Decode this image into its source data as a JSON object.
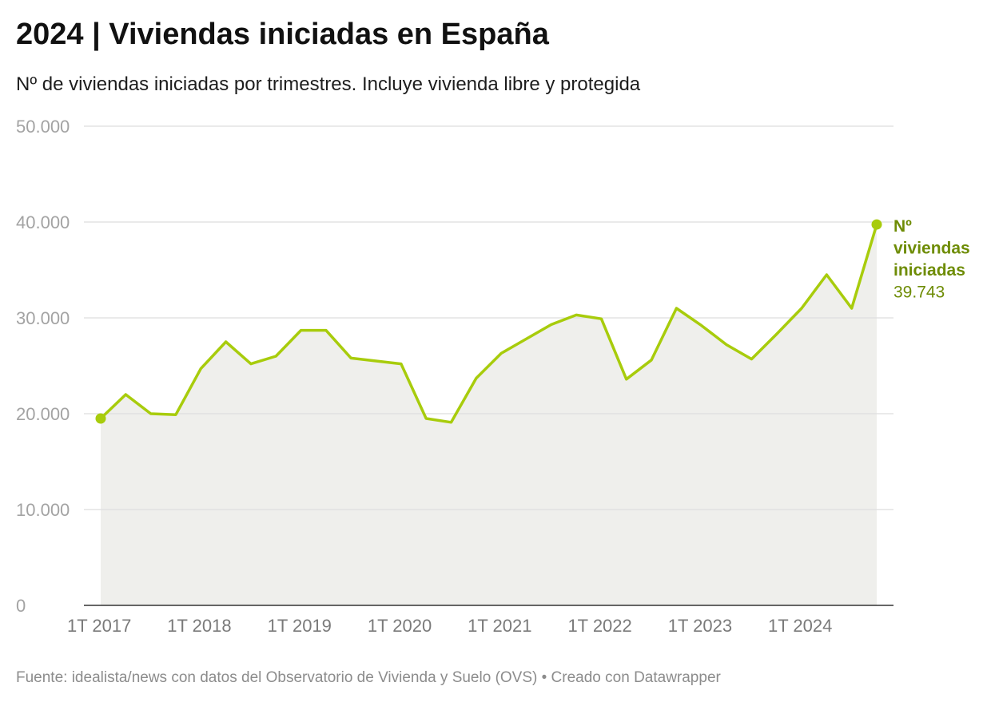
{
  "header": {
    "title": "2024 | Viviendas iniciadas en España",
    "subtitle": "Nº de viviendas iniciadas por trimestres. Incluye vivienda libre y protegida"
  },
  "footer": {
    "source": "Fuente: idealista/news con datos del Observatorio de Vivienda y Suelo (OVS) • Creado con Datawrapper"
  },
  "chart_data": {
    "type": "area",
    "series": [
      {
        "name": "Nº viviendas iniciadas",
        "color": "#a8cc0c",
        "fill": "#efefec",
        "label_lines": [
          "Nº",
          "viviendas",
          "iniciadas"
        ],
        "last_value_label": "39.743",
        "values": [
          19500,
          22000,
          20000,
          19900,
          24700,
          27500,
          25200,
          26000,
          28700,
          28700,
          25800,
          25500,
          25200,
          19500,
          19100,
          23700,
          26300,
          27800,
          29300,
          30300,
          29900,
          23600,
          25600,
          31000,
          29200,
          27200,
          25700,
          28300,
          31000,
          34500,
          31000,
          39743
        ]
      }
    ],
    "x_tick_labels": [
      "1T 2017",
      "1T 2018",
      "1T 2019",
      "1T 2020",
      "1T 2021",
      "1T 2022",
      "1T 2023",
      "1T 2024"
    ],
    "y_ticks": [
      0,
      10000,
      20000,
      30000,
      40000,
      50000
    ],
    "y_tick_labels": [
      "0",
      "10.000",
      "20.000",
      "30.000",
      "40.000",
      "50.000"
    ],
    "ylim": [
      0,
      50000
    ],
    "grid": "horizontal",
    "xlabel": "",
    "ylabel": ""
  }
}
